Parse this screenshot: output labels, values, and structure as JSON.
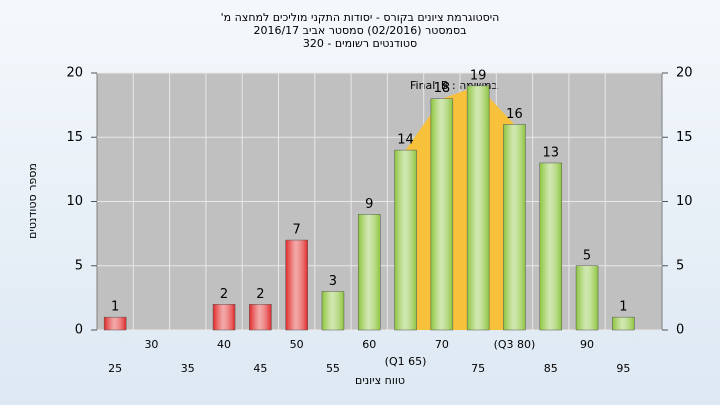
{
  "chart_data": {
    "type": "bar",
    "title_lines": [
      "היסטוגרמת ציונים בקורס - יסודות התקני מוליכים למחצה מ'",
      "בסמסטר (02/2016) סמסטר אביב 2016/17",
      "סטודנטים רשומים - 320"
    ],
    "annotation": "במשימה : Final_B",
    "x_label": "טווח ציונים",
    "y_label": "מספר סטודנטים",
    "categories": [
      "25",
      "30",
      "35",
      "40",
      "45",
      "50",
      "55",
      "60",
      "(Q1 65)",
      "70",
      "75",
      "(Q3 80)",
      "85",
      "90",
      "95"
    ],
    "values": [
      1,
      0,
      0,
      2,
      2,
      7,
      3,
      9,
      14,
      18,
      19,
      16,
      13,
      5,
      1
    ],
    "colors": [
      "#e02828",
      "#e02828",
      "#e02828",
      "#e02828",
      "#e02828",
      "#e02828",
      "#8cc43c",
      "#8cc43c",
      "#8cc43c",
      "#8cc43c",
      "#8cc43c",
      "#8cc43c",
      "#8cc43c",
      "#8cc43c",
      "#8cc43c"
    ],
    "area": {
      "color": "#f7c13c",
      "x": [
        8,
        9,
        10,
        11
      ],
      "values": [
        14,
        18,
        19,
        16
      ]
    },
    "ylim": [
      0,
      20
    ],
    "yticks": [
      0,
      5,
      10,
      15,
      20
    ],
    "grid": true
  }
}
